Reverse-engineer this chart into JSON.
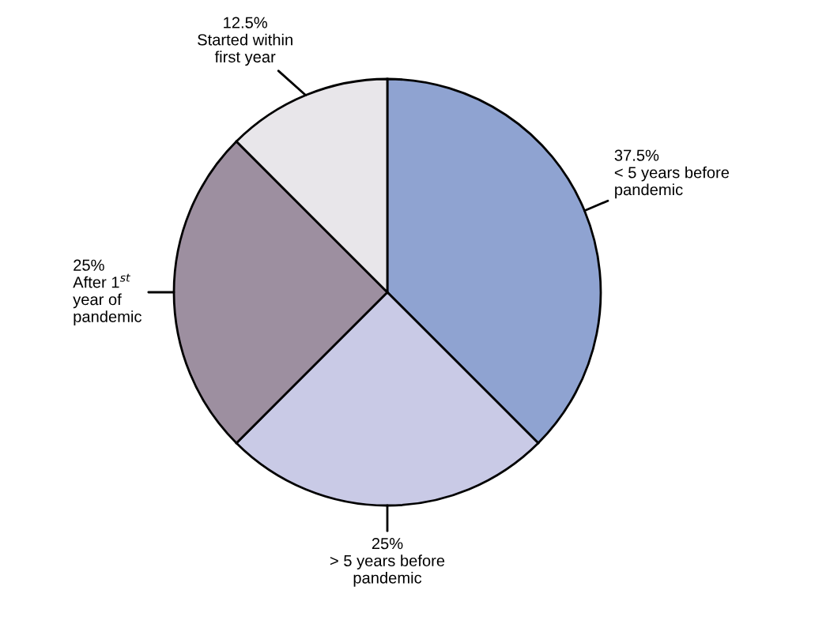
{
  "chart_data": {
    "type": "pie",
    "categories": [
      "< 5 years before\npandemic",
      "> 5 years before\npandemic",
      "After 1$^{st}$\nyear of\npandemic",
      "Started within\nfirst year"
    ],
    "values": [
      37.5,
      25,
      25,
      12.5
    ],
    "value_labels": [
      "37.5%",
      "25%",
      "25%",
      "12.5%"
    ],
    "colors": [
      "#8fa3d1",
      "#c9cae6",
      "#9d8fa0",
      "#e8e6ea"
    ]
  }
}
